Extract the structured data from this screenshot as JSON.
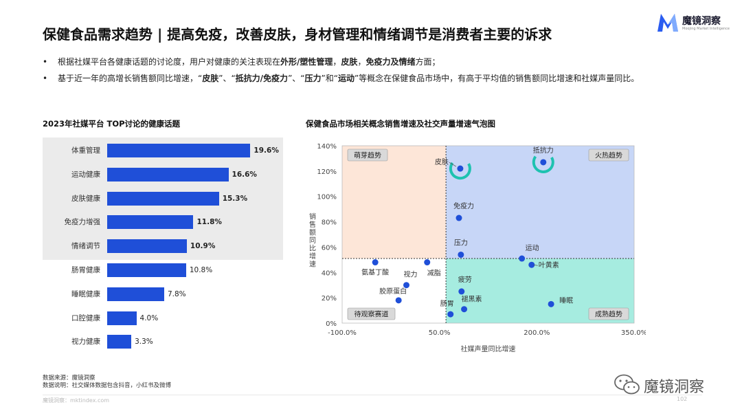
{
  "title": "保健食品需求趋势 | 提高免疫，改善皮肤，身材管理和情绪调节是消费者主要的诉求",
  "logo": {
    "name_cn": "魔镜洞察",
    "name_en": "Moojing Market Intelligence",
    "colors": {
      "primary": "#2a5cf0",
      "secondary": "#8fb8ff"
    }
  },
  "bullets": [
    {
      "marker": "•",
      "parts": [
        {
          "text": "根据社媒平台各健康话题的讨论度，用户对健康的关注表现在",
          "bold": false
        },
        {
          "text": "外形/塑性管理",
          "bold": true
        },
        {
          "text": "，",
          "bold": false
        },
        {
          "text": "皮肤",
          "bold": true
        },
        {
          "text": "，",
          "bold": false
        },
        {
          "text": "免疫力及情绪",
          "bold": true
        },
        {
          "text": "方面；",
          "bold": false
        }
      ]
    },
    {
      "marker": "•",
      "parts": [
        {
          "text": "基于近一年的高增长销售额同比增速，“",
          "bold": false
        },
        {
          "text": "皮肤",
          "bold": true
        },
        {
          "text": "”、“",
          "bold": false
        },
        {
          "text": "抵抗力/免疫力",
          "bold": true
        },
        {
          "text": "”、“",
          "bold": false
        },
        {
          "text": "压力",
          "bold": true
        },
        {
          "text": "”和“",
          "bold": false
        },
        {
          "text": "运动",
          "bold": true
        },
        {
          "text": "”等概念在保健食品市场中，有高于平均值的销售额同比增速和社媒声量同比。",
          "bold": false
        }
      ]
    }
  ],
  "chart_data": [
    {
      "type": "bar",
      "orientation": "horizontal",
      "title": "2023年社媒平台 TOP讨论的健康话题",
      "categories": [
        "体重管理",
        "运动健康",
        "皮肤健康",
        "免疫力增强",
        "情绪调节",
        "肠胃健康",
        "睡眠健康",
        "口腔健康",
        "视力健康"
      ],
      "values": [
        19.6,
        16.6,
        15.3,
        11.8,
        10.9,
        10.8,
        7.8,
        4.0,
        3.3
      ],
      "value_labels": [
        "19.6%",
        "16.6%",
        "15.3%",
        "11.8%",
        "10.9%",
        "10.8%",
        "7.8%",
        "4.0%",
        "3.3%"
      ],
      "highlighted_top_n": 5,
      "color": "#1f4fd8",
      "highlight_color": "#ebebeb"
    },
    {
      "type": "scatter",
      "subtype": "bubble-quadrant",
      "title": "保健食品市场相关概念销售增速及社交声量增速气泡图",
      "xlabel": "社媒声量同比增速",
      "ylabel": "销售额同比增速",
      "xlim": [
        -100,
        350
      ],
      "ylim": [
        0,
        140
      ],
      "x_ticks": [
        "-100.0%",
        "50.0%",
        "200.0%",
        "350.0%"
      ],
      "y_ticks": [
        "0%",
        "20%",
        "40%",
        "60%",
        "80%",
        "100%",
        "120%",
        "140%"
      ],
      "x_divider": 60,
      "y_divider": 51,
      "quadrants": [
        {
          "label": "萌芽趋势",
          "position": "top-left",
          "color": "#fde6d8"
        },
        {
          "label": "火热趋势",
          "position": "top-right",
          "color": "#c7d6f7"
        },
        {
          "label": "待观察赛道",
          "position": "bottom-left",
          "color": "#ffffff"
        },
        {
          "label": "成熟趋势",
          "position": "bottom-right",
          "color": "#a6ece0"
        }
      ],
      "point_color": "#1f4fd8",
      "ring_color": "#1ec2b0",
      "points": [
        {
          "name": "皮肤",
          "x": 82,
          "y": 122,
          "ring": true
        },
        {
          "name": "抵抗力",
          "x": 210,
          "y": 127,
          "ring": true
        },
        {
          "name": "免疫力",
          "x": 80,
          "y": 83,
          "ring": false
        },
        {
          "name": "压力",
          "x": 83,
          "y": 54,
          "ring": false
        },
        {
          "name": "运动",
          "x": 177,
          "y": 51,
          "ring": false
        },
        {
          "name": "叶黄素",
          "x": 192,
          "y": 46,
          "ring": false
        },
        {
          "name": "疲劳",
          "x": 84,
          "y": 25,
          "ring": false
        },
        {
          "name": "褪黑素",
          "x": 88,
          "y": 11,
          "ring": false
        },
        {
          "name": "肠胃",
          "x": 67,
          "y": 7,
          "ring": false
        },
        {
          "name": "睡眠",
          "x": 222,
          "y": 15,
          "ring": false
        },
        {
          "name": "氨基丁酸",
          "x": -49,
          "y": 48,
          "ring": false
        },
        {
          "name": "减脂",
          "x": 31,
          "y": 48,
          "ring": false
        },
        {
          "name": "视力",
          "x": -1,
          "y": 30,
          "ring": false
        },
        {
          "name": "胶原蛋白",
          "x": -13,
          "y": 18,
          "ring": false
        }
      ]
    }
  ],
  "footer": {
    "source": "数据来源：魔镜洞察",
    "note": "数据说明：社交媒体数据包含抖音，小红书及微博",
    "brand": "魔镜洞察：mktindex.com",
    "page": "102"
  },
  "wechat": {
    "name": "魔镜洞察",
    "icon": "wechat-icon"
  }
}
